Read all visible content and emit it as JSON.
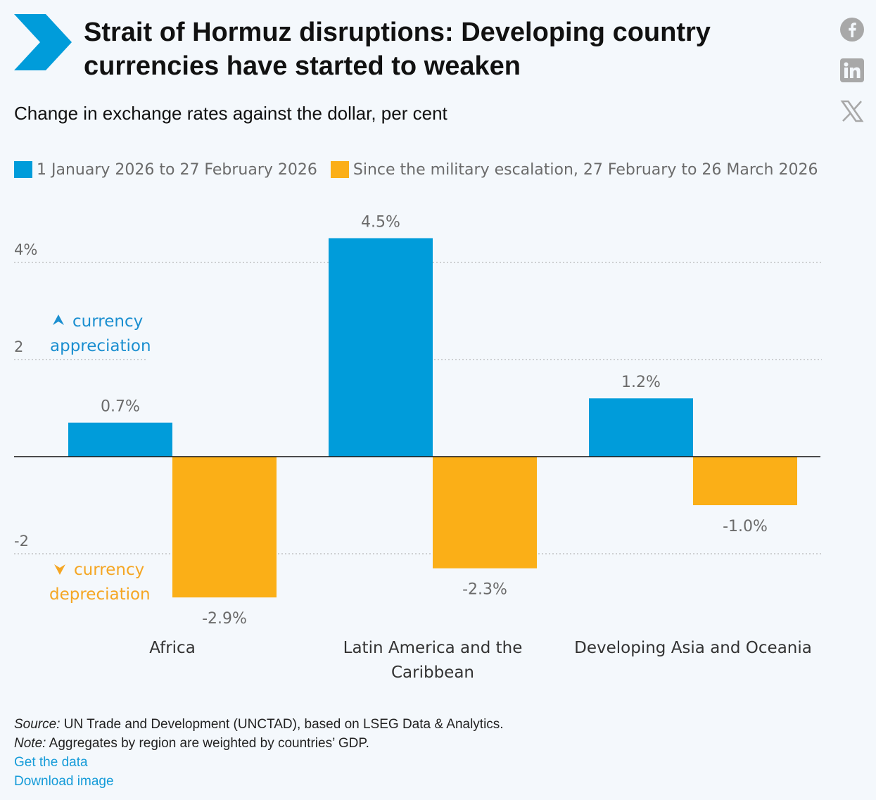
{
  "header": {
    "title": "Strait of Hormuz disruptions: Developing country currencies have started to weaken",
    "subtitle": "Change in exchange rates against the dollar, per cent"
  },
  "social": {
    "icons": [
      "facebook-icon",
      "linkedin-icon",
      "x-icon"
    ]
  },
  "colors": {
    "series1": "#009cda",
    "series2": "#fbaf17",
    "appreciation": "#1b8fd0",
    "depreciation": "#f5a623",
    "logo": "#009cda",
    "grid": "#b8b8b8"
  },
  "chart_data": {
    "type": "bar",
    "categories": [
      "Africa",
      "Latin America and the Caribbean",
      "Developing Asia and Oceania"
    ],
    "series": [
      {
        "name": "1 January 2026 to 27 February 2026",
        "values": [
          0.7,
          4.5,
          1.2
        ],
        "labels": [
          "0.7%",
          "4.5%",
          "1.2%"
        ]
      },
      {
        "name": "Since the military escalation, 27 February to 26 March 2026",
        "values": [
          -2.9,
          -2.3,
          -1.0
        ],
        "labels": [
          "-2.9%",
          "-2.3%",
          "-1.0%"
        ]
      }
    ],
    "yticks": [
      {
        "value": 4,
        "label": "4%"
      },
      {
        "value": 2,
        "label": "2"
      },
      {
        "value": -2,
        "label": "-2"
      }
    ],
    "ylim": [
      -3.2,
      4.6
    ],
    "grid": true,
    "legend": "top-left",
    "annotations": {
      "appreciation": [
        "currency",
        "appreciation"
      ],
      "depreciation": [
        "currency",
        "depreciation"
      ]
    }
  },
  "footer": {
    "source_label": "Source:",
    "source_text": "UN Trade and Development (UNCTAD), based on LSEG Data & Analytics.",
    "note_label": "Note:",
    "note_text": "Aggregates by region are weighted by countries’ GDP.",
    "get_data": "Get the data",
    "download": "Download image"
  }
}
